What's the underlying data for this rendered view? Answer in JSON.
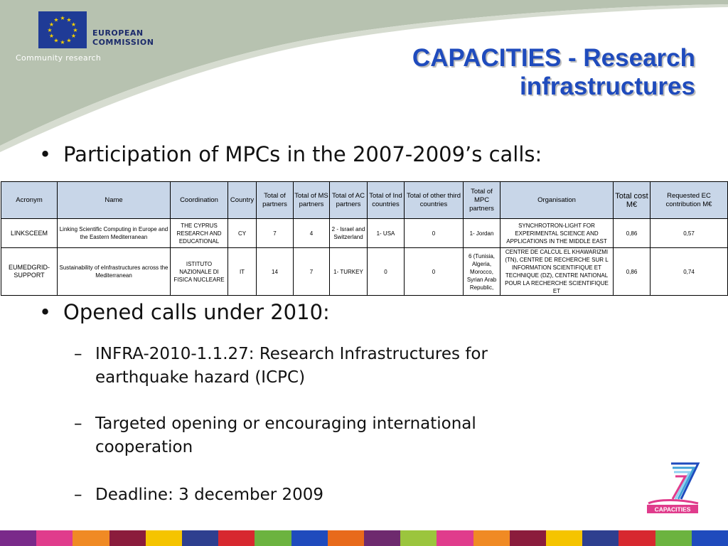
{
  "header": {
    "ec_line1": "EUROPEAN",
    "ec_line2": "COMMISSION",
    "community": "Community research"
  },
  "title": {
    "line1": "CAPACITIES - Research",
    "line2": "infrastructures"
  },
  "bullet1": "Participation of MPCs in the 2007-2009’s calls:",
  "table": {
    "headers": [
      "Acronym",
      "Name",
      "Coordination",
      "Country",
      "Total of partners",
      "Total of MS partners",
      "Total of AC partners",
      "Total of Ind countries",
      "Total of other third countries",
      "Total of MPC partners",
      "Organisation",
      "Total cost M€",
      "Requested EC contribution M€"
    ],
    "rows": [
      [
        "LINKSCEEM",
        "Linking Scientific Computing in Europe and the Eastern Mediterranean",
        "THE CYPRUS RESEARCH AND EDUCATIONAL",
        "CY",
        "7",
        "4",
        "2 - Israel and Switzerland",
        "1- USA",
        "0",
        "1- Jordan",
        "SYNCHROTRON-LIGHT FOR EXPERIMENTAL SCIENCE AND APPLICATIONS IN THE MIDDLE EAST",
        "0,86",
        "0,57"
      ],
      [
        "EUMEDGRID-SUPPORT",
        "Sustainability of eInfrastructures across the Mediterranean",
        "ISTITUTO NAZIONALE DI FISICA NUCLEARE",
        "IT",
        "14",
        "7",
        "1- TURKEY",
        "0",
        "0",
        "6 (Tunisia, Algeria, Morocco, Syrian Arab Republic,",
        "CENTRE DE CALCUL EL KHAWARIZMI (TN), CENTRE DE RECHERCHE SUR L INFORMATION SCIENTIFIQUE ET TECHNIQUE (DZ), CENTRE NATIONAL POUR LA RECHERCHE SCIENTIFIQUE ET",
        "0,86",
        "0,74"
      ]
    ]
  },
  "bullet2": "Opened calls under 2010:",
  "subitems": [
    {
      "line1": "INFRA-2010-1.1.27: Research Infrastructures for",
      "line2": "earthquake hazard (ICPC)"
    },
    {
      "line1": "Targeted opening or encouraging international",
      "line2": "cooperation"
    },
    {
      "line1": "Deadline: 3 december 2009",
      "line2": ""
    }
  ],
  "capacities_logo": "CAPACITIES",
  "colors": {
    "title": "#1f4bbd",
    "eu_flag": "#1f3b96",
    "swoosh": "#b7c2b0",
    "table_header": "#c8d6e8"
  },
  "bottom_bar_colors": [
    "#7a2a8a",
    "#e03c8c",
    "#f08a24",
    "#8b1c3c",
    "#f5c400",
    "#2e3f8f",
    "#d7282f",
    "#6cb33f",
    "#1f4bbd",
    "#e86a1b",
    "#6e2a6e",
    "#9bc53d",
    "#e03c8c",
    "#f08a24",
    "#8b1c3c",
    "#f5c400",
    "#2e3f8f",
    "#d7282f",
    "#6cb33f",
    "#1f4bbd"
  ]
}
